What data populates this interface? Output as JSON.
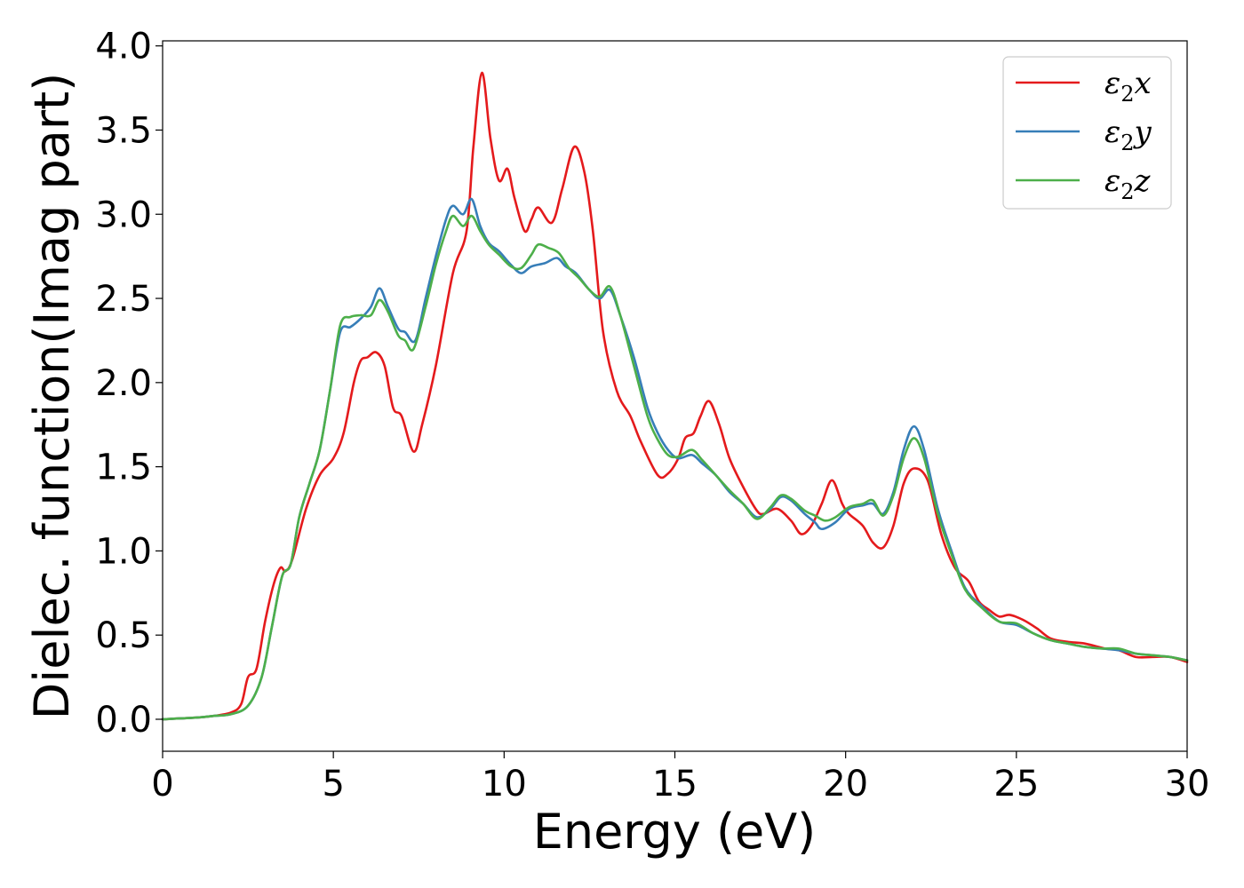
{
  "chart_data": {
    "type": "line",
    "xlabel": "Energy (eV)",
    "ylabel": "Dielec. function(Imag part)",
    "xlim": [
      0,
      30
    ],
    "ylim": [
      -0.19,
      4.03
    ],
    "xticks": [
      0,
      5,
      10,
      15,
      20,
      25,
      30
    ],
    "xtick_labels": [
      "0",
      "5",
      "10",
      "15",
      "20",
      "25",
      "30"
    ],
    "yticks": [
      0.0,
      0.5,
      1.0,
      1.5,
      2.0,
      2.5,
      3.0,
      3.5,
      4.0
    ],
    "ytick_labels": [
      "0.0",
      "0.5",
      "1.0",
      "1.5",
      "2.0",
      "2.5",
      "3.0",
      "3.5",
      "4.0"
    ],
    "grid": false,
    "legend_position": "top-right",
    "series": [
      {
        "name": "ε2x",
        "legend_main": "ε",
        "legend_sub": "2",
        "legend_suffix": "x",
        "color": "#e41a1c",
        "points": [
          [
            0,
            0
          ],
          [
            1,
            0.01
          ],
          [
            1.5,
            0.02
          ],
          [
            2.0,
            0.04
          ],
          [
            2.3,
            0.09
          ],
          [
            2.5,
            0.25
          ],
          [
            2.75,
            0.3
          ],
          [
            3.0,
            0.58
          ],
          [
            3.25,
            0.8
          ],
          [
            3.45,
            0.9
          ],
          [
            3.6,
            0.88
          ],
          [
            3.8,
            0.95
          ],
          [
            4.2,
            1.25
          ],
          [
            4.6,
            1.45
          ],
          [
            5.0,
            1.55
          ],
          [
            5.3,
            1.7
          ],
          [
            5.6,
            2.0
          ],
          [
            5.8,
            2.13
          ],
          [
            6.0,
            2.15
          ],
          [
            6.25,
            2.18
          ],
          [
            6.5,
            2.1
          ],
          [
            6.75,
            1.85
          ],
          [
            7.0,
            1.8
          ],
          [
            7.35,
            1.59
          ],
          [
            7.6,
            1.75
          ],
          [
            8.0,
            2.1
          ],
          [
            8.5,
            2.65
          ],
          [
            8.9,
            2.9
          ],
          [
            9.1,
            3.4
          ],
          [
            9.35,
            3.84
          ],
          [
            9.6,
            3.45
          ],
          [
            9.85,
            3.2
          ],
          [
            10.1,
            3.27
          ],
          [
            10.3,
            3.1
          ],
          [
            10.6,
            2.9
          ],
          [
            10.8,
            2.97
          ],
          [
            11.0,
            3.04
          ],
          [
            11.4,
            2.95
          ],
          [
            11.7,
            3.15
          ],
          [
            12.05,
            3.4
          ],
          [
            12.35,
            3.25
          ],
          [
            12.6,
            2.9
          ],
          [
            12.9,
            2.3
          ],
          [
            13.3,
            1.95
          ],
          [
            13.7,
            1.8
          ],
          [
            14.0,
            1.65
          ],
          [
            14.5,
            1.45
          ],
          [
            14.8,
            1.46
          ],
          [
            15.1,
            1.55
          ],
          [
            15.3,
            1.67
          ],
          [
            15.55,
            1.7
          ],
          [
            15.75,
            1.8
          ],
          [
            16.0,
            1.89
          ],
          [
            16.3,
            1.75
          ],
          [
            16.6,
            1.55
          ],
          [
            17.0,
            1.38
          ],
          [
            17.4,
            1.24
          ],
          [
            17.6,
            1.22
          ],
          [
            18.0,
            1.25
          ],
          [
            18.4,
            1.18
          ],
          [
            18.7,
            1.1
          ],
          [
            19.0,
            1.15
          ],
          [
            19.3,
            1.28
          ],
          [
            19.6,
            1.42
          ],
          [
            19.9,
            1.28
          ],
          [
            20.1,
            1.22
          ],
          [
            20.5,
            1.15
          ],
          [
            20.8,
            1.05
          ],
          [
            21.1,
            1.02
          ],
          [
            21.4,
            1.15
          ],
          [
            21.7,
            1.4
          ],
          [
            22.0,
            1.49
          ],
          [
            22.4,
            1.42
          ],
          [
            22.8,
            1.1
          ],
          [
            23.2,
            0.9
          ],
          [
            23.6,
            0.82
          ],
          [
            23.9,
            0.7
          ],
          [
            24.2,
            0.65
          ],
          [
            24.5,
            0.61
          ],
          [
            24.8,
            0.62
          ],
          [
            25.2,
            0.59
          ],
          [
            25.6,
            0.54
          ],
          [
            26.0,
            0.48
          ],
          [
            26.5,
            0.46
          ],
          [
            27.0,
            0.45
          ],
          [
            27.6,
            0.42
          ],
          [
            28.0,
            0.41
          ],
          [
            28.5,
            0.37
          ],
          [
            29.0,
            0.37
          ],
          [
            29.5,
            0.37
          ],
          [
            30.0,
            0.34
          ]
        ]
      },
      {
        "name": "ε2y",
        "legend_main": "ε",
        "legend_sub": "2",
        "legend_suffix": "y",
        "color": "#377eb8",
        "points": [
          [
            0,
            0
          ],
          [
            1,
            0.01
          ],
          [
            1.5,
            0.02
          ],
          [
            2.0,
            0.03
          ],
          [
            2.5,
            0.08
          ],
          [
            2.9,
            0.25
          ],
          [
            3.2,
            0.55
          ],
          [
            3.5,
            0.85
          ],
          [
            3.75,
            0.92
          ],
          [
            4.0,
            1.2
          ],
          [
            4.3,
            1.4
          ],
          [
            4.6,
            1.6
          ],
          [
            4.9,
            1.95
          ],
          [
            5.2,
            2.3
          ],
          [
            5.5,
            2.33
          ],
          [
            5.8,
            2.38
          ],
          [
            6.1,
            2.45
          ],
          [
            6.35,
            2.56
          ],
          [
            6.6,
            2.45
          ],
          [
            6.9,
            2.32
          ],
          [
            7.1,
            2.3
          ],
          [
            7.4,
            2.25
          ],
          [
            7.7,
            2.5
          ],
          [
            8.0,
            2.75
          ],
          [
            8.3,
            2.97
          ],
          [
            8.5,
            3.05
          ],
          [
            8.8,
            3.0
          ],
          [
            9.05,
            3.09
          ],
          [
            9.3,
            2.93
          ],
          [
            9.55,
            2.83
          ],
          [
            9.85,
            2.78
          ],
          [
            10.2,
            2.7
          ],
          [
            10.5,
            2.65
          ],
          [
            10.8,
            2.69
          ],
          [
            11.2,
            2.71
          ],
          [
            11.55,
            2.74
          ],
          [
            11.8,
            2.69
          ],
          [
            12.1,
            2.65
          ],
          [
            12.5,
            2.55
          ],
          [
            12.8,
            2.5
          ],
          [
            13.1,
            2.55
          ],
          [
            13.4,
            2.4
          ],
          [
            13.8,
            2.15
          ],
          [
            14.2,
            1.85
          ],
          [
            14.5,
            1.7
          ],
          [
            14.8,
            1.6
          ],
          [
            15.1,
            1.55
          ],
          [
            15.5,
            1.57
          ],
          [
            15.8,
            1.52
          ],
          [
            16.2,
            1.45
          ],
          [
            16.6,
            1.35
          ],
          [
            17.0,
            1.28
          ],
          [
            17.4,
            1.2
          ],
          [
            17.8,
            1.25
          ],
          [
            18.1,
            1.32
          ],
          [
            18.4,
            1.3
          ],
          [
            18.8,
            1.22
          ],
          [
            19.1,
            1.17
          ],
          [
            19.3,
            1.13
          ],
          [
            19.7,
            1.17
          ],
          [
            20.1,
            1.25
          ],
          [
            20.5,
            1.27
          ],
          [
            20.8,
            1.28
          ],
          [
            21.1,
            1.22
          ],
          [
            21.4,
            1.35
          ],
          [
            21.7,
            1.6
          ],
          [
            22.0,
            1.74
          ],
          [
            22.3,
            1.6
          ],
          [
            22.7,
            1.25
          ],
          [
            23.1,
            1.0
          ],
          [
            23.5,
            0.78
          ],
          [
            24.0,
            0.67
          ],
          [
            24.5,
            0.58
          ],
          [
            25.0,
            0.56
          ],
          [
            25.5,
            0.51
          ],
          [
            26.0,
            0.47
          ],
          [
            26.5,
            0.45
          ],
          [
            27.0,
            0.43
          ],
          [
            27.5,
            0.42
          ],
          [
            28.0,
            0.41
          ],
          [
            28.5,
            0.39
          ],
          [
            29.0,
            0.38
          ],
          [
            29.5,
            0.37
          ],
          [
            30.0,
            0.35
          ]
        ]
      },
      {
        "name": "ε2z",
        "legend_main": "ε",
        "legend_sub": "2",
        "legend_suffix": "z",
        "color": "#4daf4a",
        "points": [
          [
            0,
            0
          ],
          [
            1,
            0.01
          ],
          [
            1.5,
            0.02
          ],
          [
            2.0,
            0.03
          ],
          [
            2.5,
            0.08
          ],
          [
            2.9,
            0.25
          ],
          [
            3.2,
            0.55
          ],
          [
            3.5,
            0.85
          ],
          [
            3.75,
            0.92
          ],
          [
            4.0,
            1.2
          ],
          [
            4.3,
            1.4
          ],
          [
            4.6,
            1.6
          ],
          [
            4.9,
            1.95
          ],
          [
            5.2,
            2.34
          ],
          [
            5.5,
            2.39
          ],
          [
            5.8,
            2.4
          ],
          [
            6.1,
            2.4
          ],
          [
            6.35,
            2.49
          ],
          [
            6.6,
            2.42
          ],
          [
            6.9,
            2.28
          ],
          [
            7.1,
            2.25
          ],
          [
            7.35,
            2.2
          ],
          [
            7.7,
            2.45
          ],
          [
            8.0,
            2.7
          ],
          [
            8.3,
            2.9
          ],
          [
            8.5,
            2.99
          ],
          [
            8.8,
            2.93
          ],
          [
            9.05,
            2.99
          ],
          [
            9.3,
            2.9
          ],
          [
            9.55,
            2.82
          ],
          [
            9.85,
            2.76
          ],
          [
            10.2,
            2.69
          ],
          [
            10.5,
            2.68
          ],
          [
            10.8,
            2.76
          ],
          [
            11.0,
            2.82
          ],
          [
            11.3,
            2.8
          ],
          [
            11.6,
            2.77
          ],
          [
            11.9,
            2.68
          ],
          [
            12.2,
            2.62
          ],
          [
            12.5,
            2.55
          ],
          [
            12.8,
            2.51
          ],
          [
            13.1,
            2.57
          ],
          [
            13.4,
            2.4
          ],
          [
            13.8,
            2.1
          ],
          [
            14.2,
            1.8
          ],
          [
            14.5,
            1.66
          ],
          [
            14.8,
            1.57
          ],
          [
            15.1,
            1.56
          ],
          [
            15.5,
            1.6
          ],
          [
            15.8,
            1.54
          ],
          [
            16.2,
            1.45
          ],
          [
            16.6,
            1.36
          ],
          [
            17.0,
            1.28
          ],
          [
            17.4,
            1.19
          ],
          [
            17.8,
            1.26
          ],
          [
            18.1,
            1.33
          ],
          [
            18.4,
            1.31
          ],
          [
            18.8,
            1.24
          ],
          [
            19.1,
            1.21
          ],
          [
            19.4,
            1.18
          ],
          [
            19.7,
            1.2
          ],
          [
            20.1,
            1.26
          ],
          [
            20.5,
            1.28
          ],
          [
            20.8,
            1.3
          ],
          [
            21.1,
            1.21
          ],
          [
            21.4,
            1.33
          ],
          [
            21.7,
            1.55
          ],
          [
            22.0,
            1.67
          ],
          [
            22.3,
            1.55
          ],
          [
            22.7,
            1.22
          ],
          [
            23.1,
            0.98
          ],
          [
            23.5,
            0.77
          ],
          [
            24.0,
            0.66
          ],
          [
            24.5,
            0.58
          ],
          [
            25.0,
            0.57
          ],
          [
            25.5,
            0.51
          ],
          [
            26.0,
            0.47
          ],
          [
            26.5,
            0.45
          ],
          [
            27.0,
            0.43
          ],
          [
            27.5,
            0.42
          ],
          [
            28.0,
            0.42
          ],
          [
            28.5,
            0.39
          ],
          [
            29.0,
            0.38
          ],
          [
            29.5,
            0.37
          ],
          [
            30.0,
            0.35
          ]
        ]
      }
    ]
  }
}
